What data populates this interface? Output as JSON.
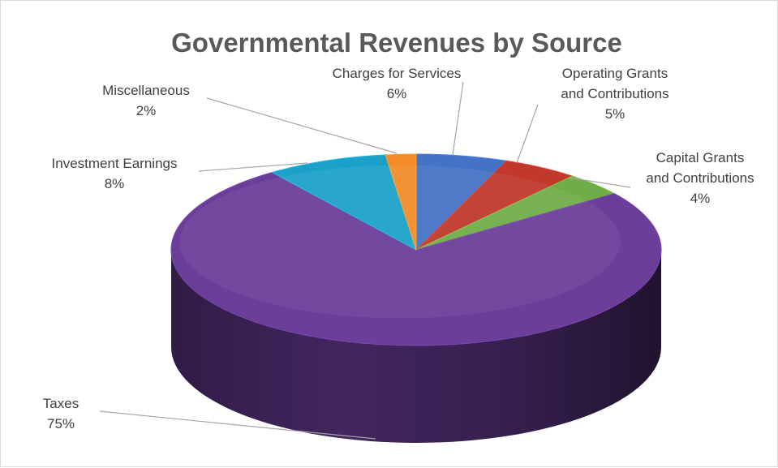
{
  "chart_data": {
    "type": "pie",
    "title": "Governmental  Revenues by Source",
    "slices": [
      {
        "label_lines": [
          "Charges for Services"
        ],
        "value": 6,
        "value_text": "6%",
        "color": "#4472C4"
      },
      {
        "label_lines": [
          "Operating Grants",
          "and Contributions"
        ],
        "value": 5,
        "value_text": "5%",
        "color": "#C0392B"
      },
      {
        "label_lines": [
          "Capital Grants",
          "and Contributions"
        ],
        "value": 4,
        "value_text": "4%",
        "color": "#70AD47"
      },
      {
        "label_lines": [
          "Taxes"
        ],
        "value": 75,
        "value_text": "75%",
        "color": "#6A3E99"
      },
      {
        "label_lines": [
          "Investment Earnings"
        ],
        "value": 8,
        "value_text": "8%",
        "color": "#1BA1C9"
      },
      {
        "label_lines": [
          "Miscellaneous"
        ],
        "value": 2,
        "value_text": "2%",
        "color": "#F28C28"
      }
    ],
    "style": "3d-pie",
    "legend": "none"
  }
}
